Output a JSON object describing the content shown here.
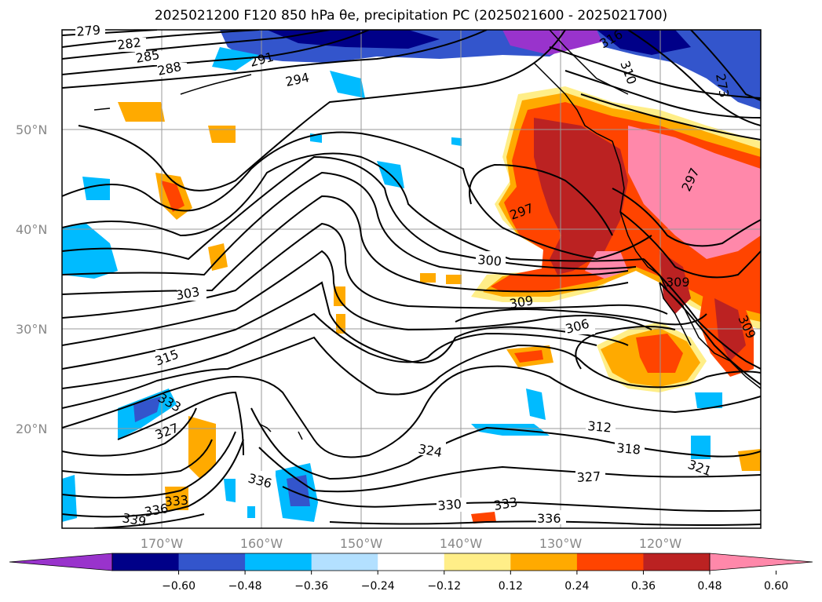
{
  "title": "2025021200 F120 850 hPa θe, precipitation PC (2025021600 - 2025021700)",
  "lat_labels": [
    "50°N",
    "40°N",
    "30°N",
    "20°N"
  ],
  "lon_labels": [
    "170°W",
    "160°W",
    "150°W",
    "140°W",
    "130°W",
    "120°W"
  ],
  "contour_labels": [
    "279",
    "282",
    "285",
    "288",
    "291",
    "294",
    "297",
    "297",
    "300",
    "303",
    "306",
    "309",
    "309",
    "309",
    "312",
    "315",
    "318",
    "321",
    "324",
    "327",
    "327",
    "330",
    "333",
    "333",
    "333",
    "336",
    "336",
    "336",
    "339",
    "310",
    "273",
    "316"
  ],
  "colorbar": {
    "colors": [
      "#9933cc",
      "#000088",
      "#3355cc",
      "#00bbff",
      "#b3e0ff",
      "#ffffff",
      "#ffee88",
      "#ffaa00",
      "#ff4400",
      "#bb2222",
      "#ff88aa"
    ],
    "tick_labels": [
      "−0.60",
      "−0.48",
      "−0.36",
      "−0.24",
      "−0.12",
      "0.12",
      "0.24",
      "0.36",
      "0.48",
      "0.60"
    ]
  },
  "colors": {
    "coast": "#000000",
    "grid": "#999999",
    "contour": "#000000"
  }
}
